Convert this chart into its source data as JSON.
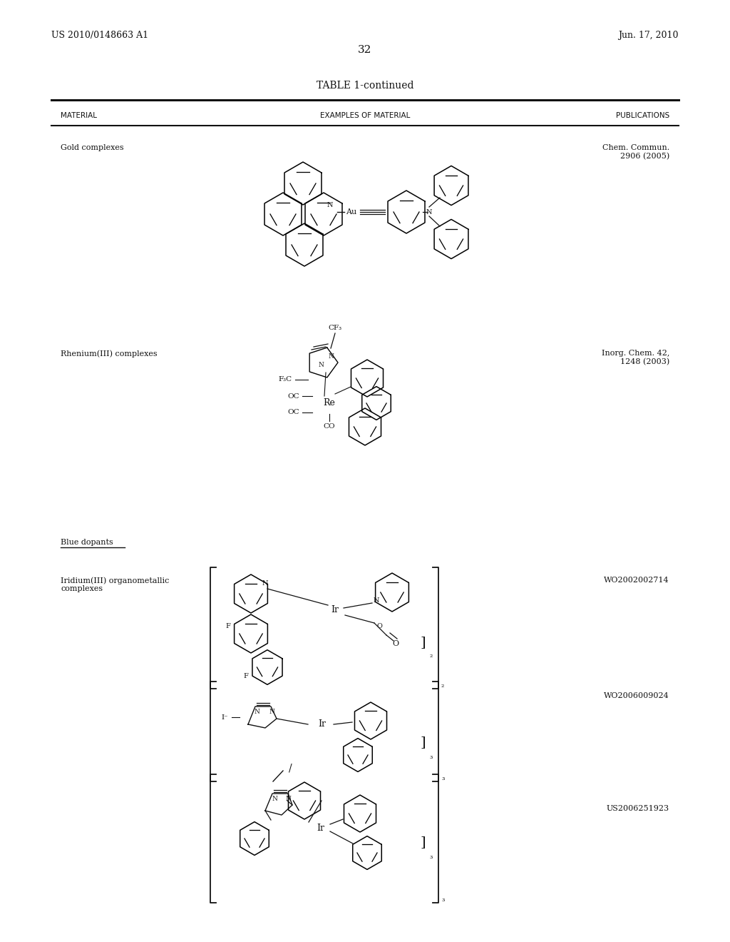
{
  "page_header_left": "US 2010/0148663 A1",
  "page_header_right": "Jun. 17, 2010",
  "page_number": "32",
  "table_title": "TABLE 1-continued",
  "col1_header": "MATERIAL",
  "col2_header": "EXAMPLES OF MATERIAL",
  "col3_header": "PUBLICATIONS",
  "row1_material": "Gold complexes",
  "row1_pub": "Chem. Commun.\n2906 (2005)",
  "row2_material": "Rhenium(III) complexes",
  "row2_pub": "Inorg. Chem. 42,\n1248 (2003)",
  "row3_material": "Blue dopants",
  "row4_material": "Iridium(III) organometallic\ncomplexes",
  "row4_pub": "WO2002002714",
  "row5_pub": "WO2006009024",
  "row6_pub": "US2006251923",
  "bg_color": "#ffffff",
  "text_color": "#111111",
  "line_color": "#111111"
}
